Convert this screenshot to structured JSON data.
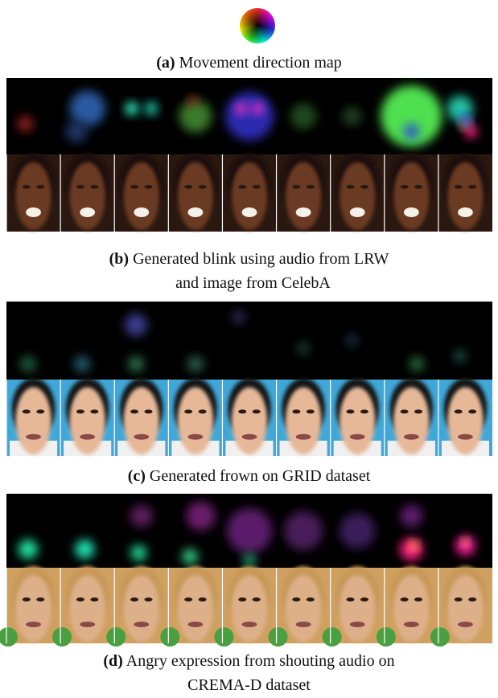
{
  "figure": {
    "panels": [
      {
        "label": "(a)",
        "caption": [
          "Movement direction map"
        ]
      },
      {
        "label": "(b)",
        "caption": [
          "Generated blink using audio from LRW",
          "and image from CelebA"
        ]
      },
      {
        "label": "(c)",
        "caption": [
          "Generated frown on GRID dataset"
        ]
      },
      {
        "label": "(d)",
        "caption": [
          "Angry expression from shouting audio on",
          "CREMA-D dataset"
        ]
      }
    ]
  }
}
